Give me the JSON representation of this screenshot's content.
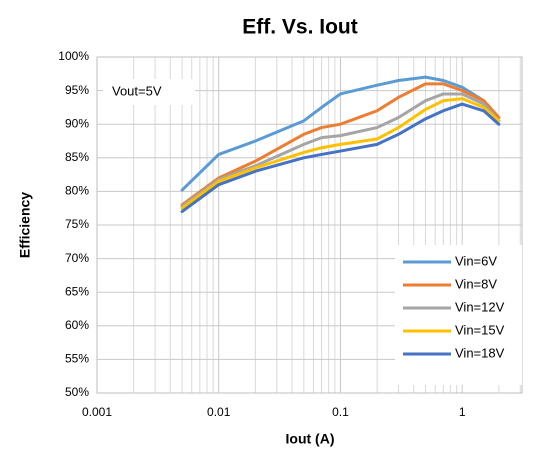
{
  "chart_data": {
    "type": "line",
    "title": "Eff. Vs. Iout",
    "xlabel": "Iout (A)",
    "ylabel": "Efficiency",
    "annotation": "Vout=5V",
    "x": [
      0.005,
      0.01,
      0.02,
      0.05,
      0.07,
      0.1,
      0.2,
      0.3,
      0.5,
      0.7,
      1,
      1.5,
      2
    ],
    "series": [
      {
        "name": "Vin=6V",
        "color": "#5b9bd5",
        "values": [
          80.2,
          85.5,
          87.5,
          90.5,
          92.5,
          94.5,
          95.8,
          96.5,
          97,
          96.5,
          95.5,
          93.5,
          91
        ]
      },
      {
        "name": "Vin=8V",
        "color": "#ed7d31",
        "values": [
          78,
          82,
          84.5,
          88.5,
          89.5,
          90,
          92,
          94,
          96,
          96,
          95,
          93.5,
          91
        ]
      },
      {
        "name": "Vin=12V",
        "color": "#a5a5a5",
        "values": [
          77.8,
          81.8,
          83.8,
          87,
          88,
          88.3,
          89.5,
          91,
          93.5,
          94.5,
          94.5,
          93,
          90.5
        ]
      },
      {
        "name": "Vin=15V",
        "color": "#ffc000",
        "values": [
          77.5,
          81.5,
          83.5,
          85.8,
          86.5,
          87,
          87.8,
          89.5,
          92.2,
          93.5,
          93.8,
          92.5,
          90.5
        ]
      },
      {
        "name": "Vin=18V",
        "color": "#4472c4",
        "values": [
          77,
          81,
          83,
          85,
          85.5,
          86,
          87,
          88.5,
          90.8,
          92,
          93,
          92,
          90
        ]
      }
    ],
    "xscale": "log",
    "xlim": [
      0.001,
      3.1
    ],
    "xticks": [
      0.001,
      0.01,
      0.1,
      1
    ],
    "ylim": [
      50,
      100
    ],
    "yticks": [
      {
        "value": 50,
        "label": "50%"
      },
      {
        "value": 55,
        "label": "55%"
      },
      {
        "value": 60,
        "label": "60%"
      },
      {
        "value": 65,
        "label": "65%"
      },
      {
        "value": 70,
        "label": "70%"
      },
      {
        "value": 75,
        "label": "75%"
      },
      {
        "value": 80,
        "label": "80%"
      },
      {
        "value": 85,
        "label": "85%"
      },
      {
        "value": 90,
        "label": "90%"
      },
      {
        "value": 95,
        "label": "95%"
      },
      {
        "value": 100,
        "label": "100%"
      }
    ],
    "grid": true,
    "legend": "lower right"
  }
}
